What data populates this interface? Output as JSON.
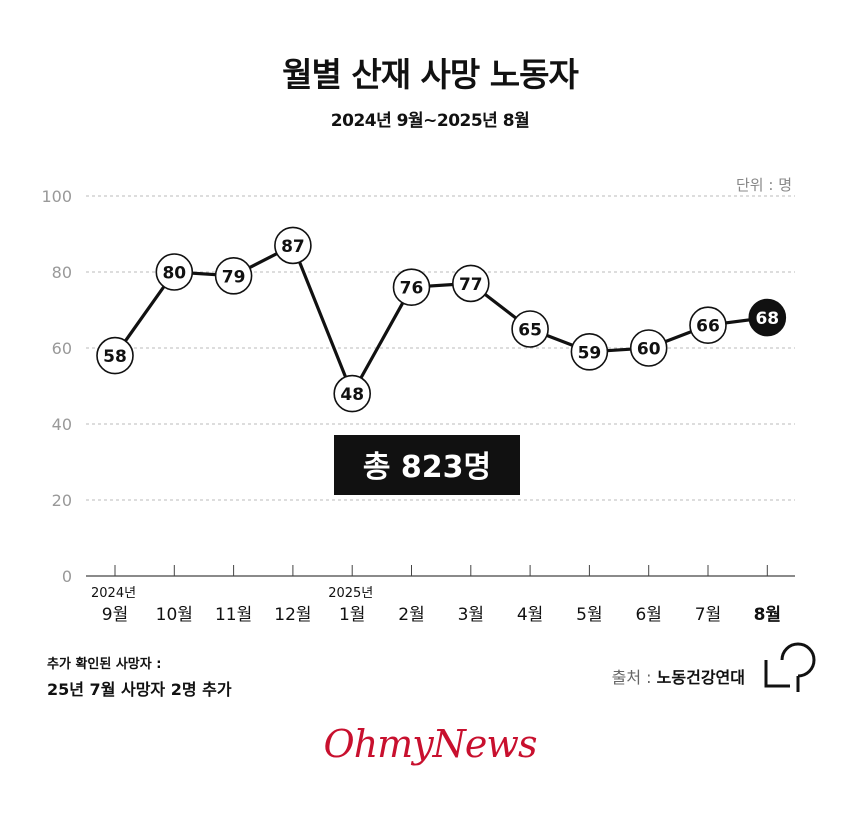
{
  "header": {
    "title": "월별 산재 사망 노동자",
    "subtitle": "2024년 9월~2025년 8월",
    "unit": "단위 : 명"
  },
  "chart_data": {
    "type": "line",
    "title": "월별 산재 사망 노동자",
    "subtitle": "2024년 9월~2025년 8월",
    "xlabel": "",
    "ylabel": "",
    "unit": "명",
    "ylim": [
      0,
      100
    ],
    "yticks": [
      0,
      20,
      40,
      60,
      80,
      100
    ],
    "grid": true,
    "categories": [
      "9월",
      "10월",
      "11월",
      "12월",
      "1월",
      "2월",
      "3월",
      "4월",
      "5월",
      "6월",
      "7월",
      "8월"
    ],
    "year_labels": [
      {
        "index": 0,
        "label": "2024년"
      },
      {
        "index": 4,
        "label": "2025년"
      }
    ],
    "highlight_index": 11,
    "series": [
      {
        "values": [
          58,
          80,
          79,
          87,
          48,
          76,
          77,
          65,
          59,
          60,
          66,
          68
        ]
      }
    ],
    "annotation": "총 823명"
  },
  "footer": {
    "note_label": "추가 확인된 사망자 :",
    "note_text": "25년 7월 사망자 2명 추가",
    "source_label": "출처 : ",
    "source_name": "노동건강연대",
    "brand": "OhmyNews"
  },
  "colors": {
    "line": "#111111",
    "grid": "#bbbbbb",
    "highlight": "#111111",
    "annotation_bg": "#111111",
    "annotation_text": "#ffffff",
    "brand": "#c8102e"
  }
}
